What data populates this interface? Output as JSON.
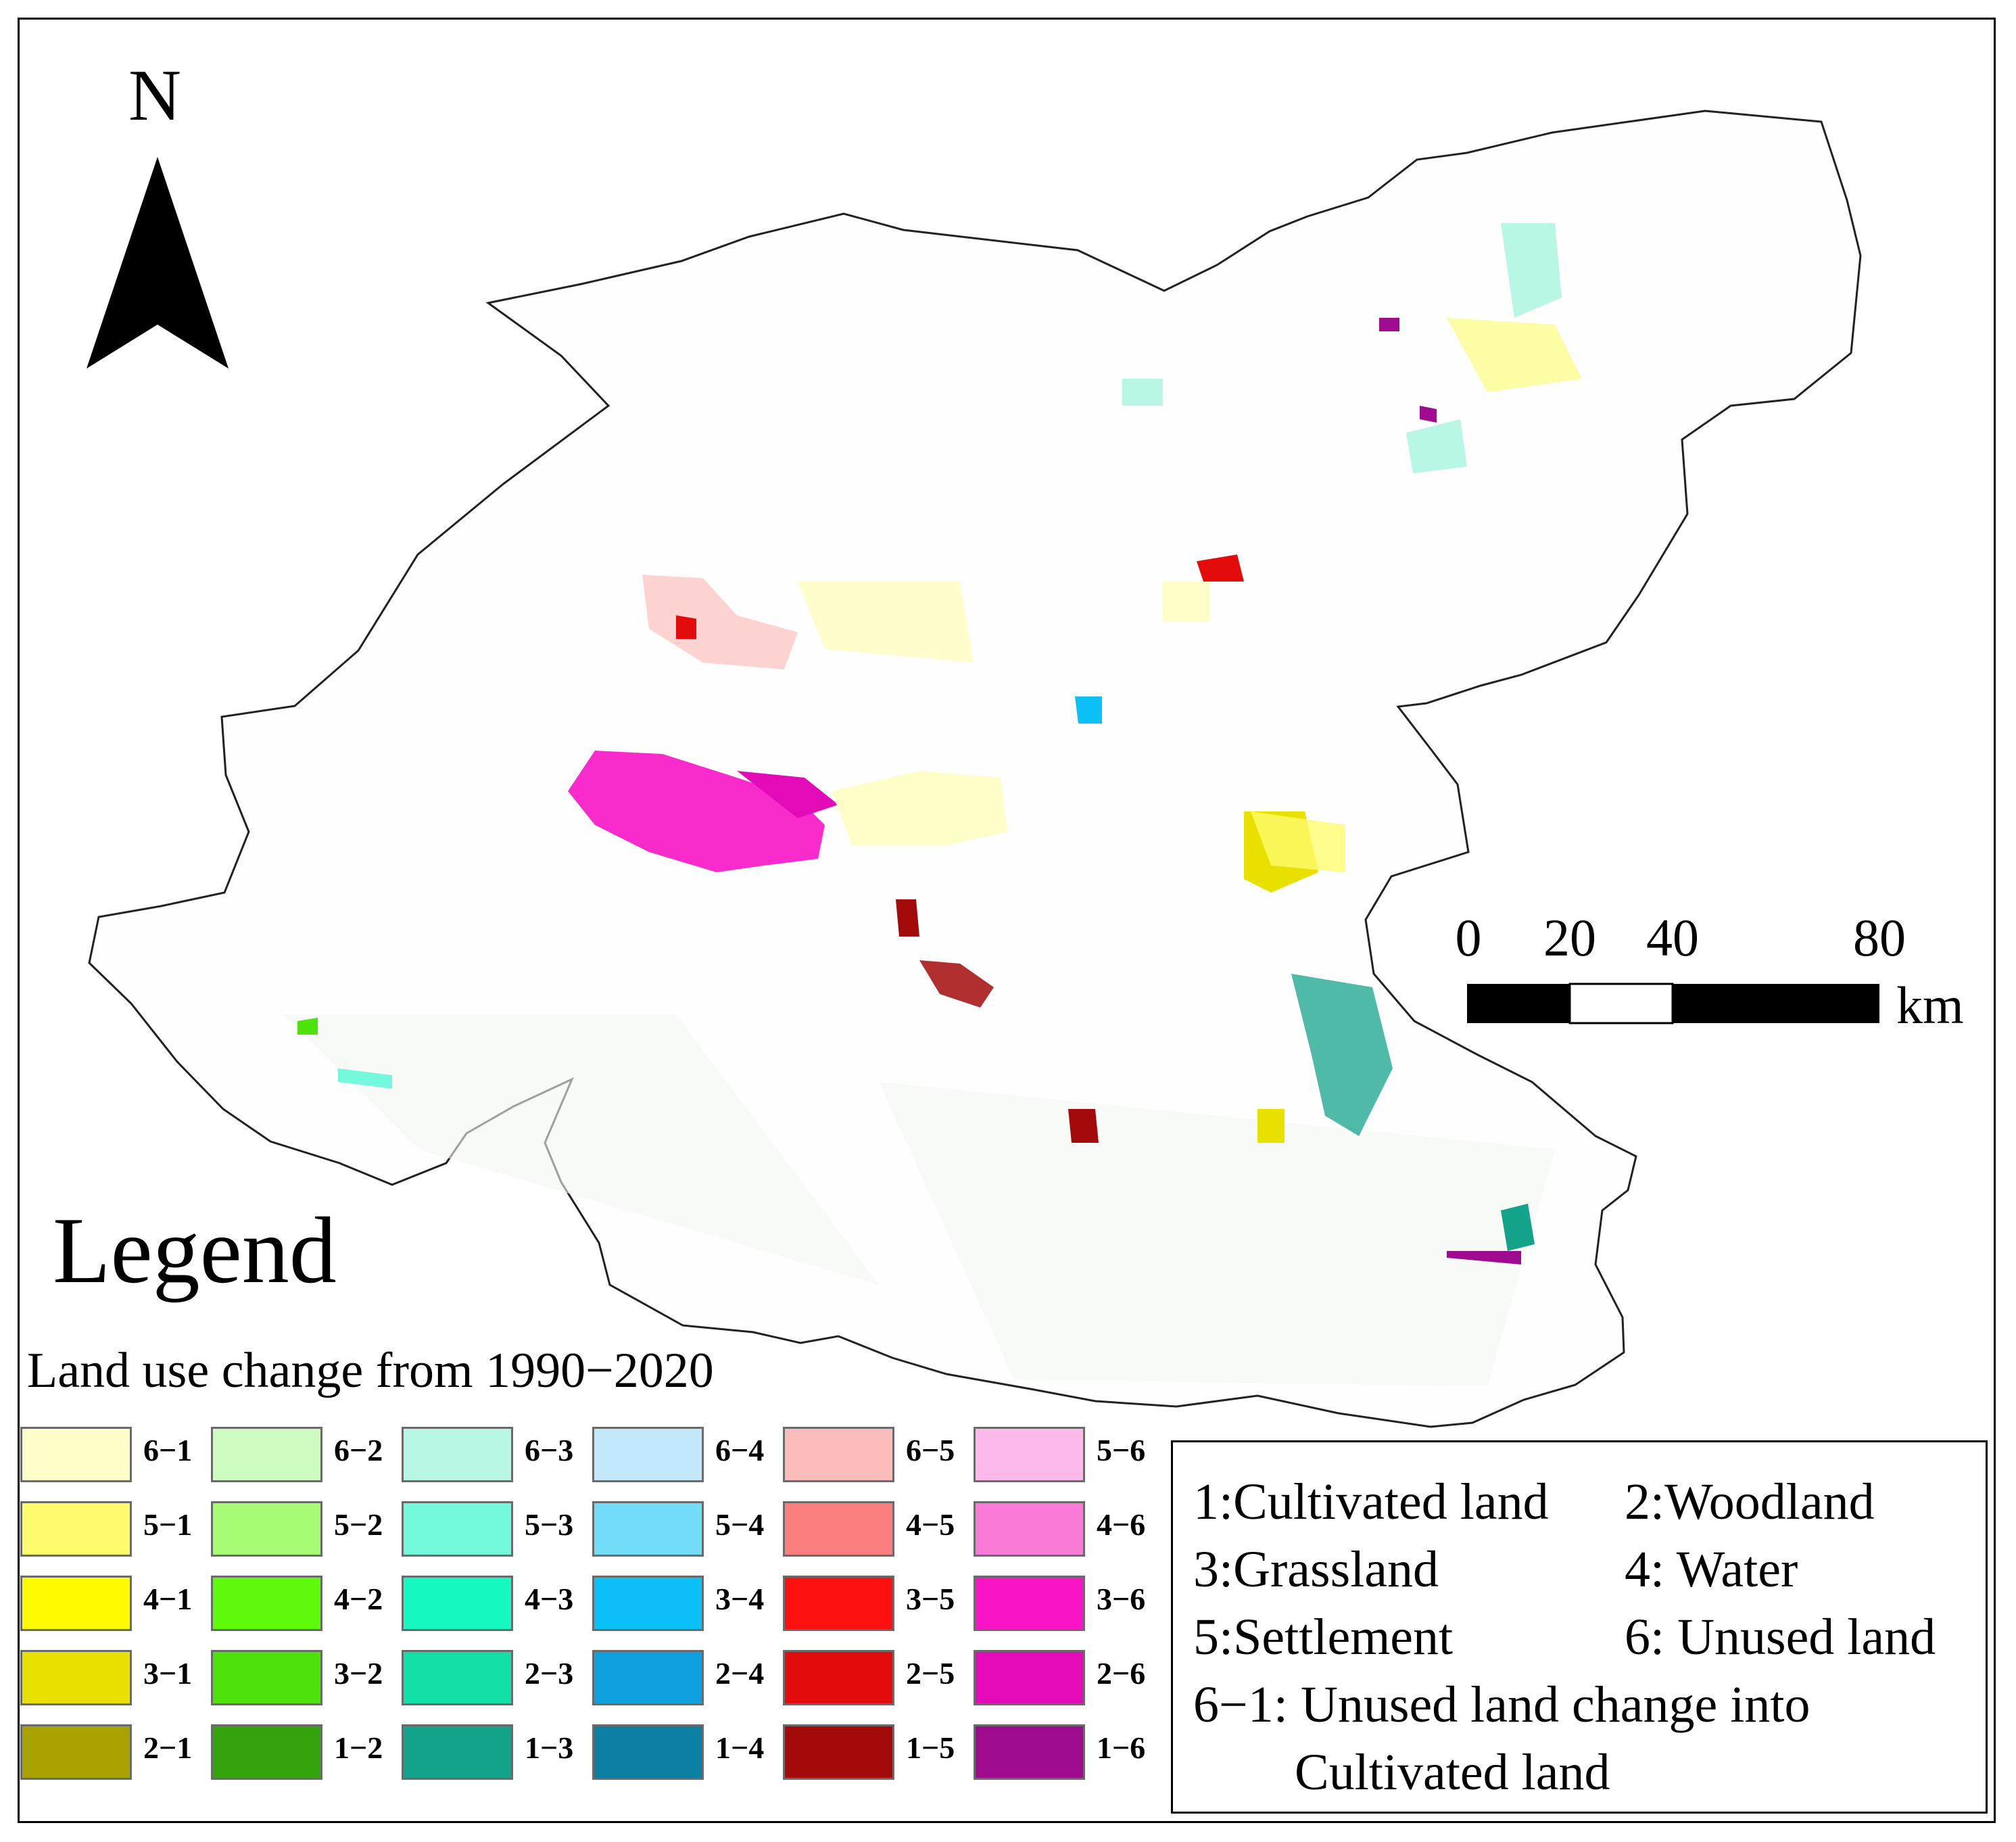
{
  "north_arrow": {
    "label": "N"
  },
  "scale_bar": {
    "ticks": [
      "0",
      "20",
      "40",
      "80"
    ],
    "unit": "km"
  },
  "legend": {
    "title": "Legend",
    "subtitle": "Land use change from 1990−2020",
    "items": [
      {
        "code": "6−1",
        "color": "#fefec8"
      },
      {
        "code": "6−2",
        "color": "#cdfbc0"
      },
      {
        "code": "6−3",
        "color": "#b8f6e6"
      },
      {
        "code": "6−4",
        "color": "#c3e8fb"
      },
      {
        "code": "6−5",
        "color": "#fdbcbc"
      },
      {
        "code": "5−6",
        "color": "#fdb9ea"
      },
      {
        "code": "5−1",
        "color": "#fefb6d"
      },
      {
        "code": "5−2",
        "color": "#a8fb74"
      },
      {
        "code": "5−3",
        "color": "#75f9dd"
      },
      {
        "code": "5−4",
        "color": "#72dcf9"
      },
      {
        "code": "4−5",
        "color": "#fc7f7f"
      },
      {
        "code": "4−6",
        "color": "#f97ad7"
      },
      {
        "code": "4−1",
        "color": "#fefa00"
      },
      {
        "code": "4−2",
        "color": "#5dfb0b"
      },
      {
        "code": "4−3",
        "color": "#15f8c0"
      },
      {
        "code": "3−4",
        "color": "#0bc0f7"
      },
      {
        "code": "3−5",
        "color": "#fc1010"
      },
      {
        "code": "3−6",
        "color": "#fa14c6"
      },
      {
        "code": "3−1",
        "color": "#e8e100"
      },
      {
        "code": "3−2",
        "color": "#4ce20a"
      },
      {
        "code": "2−3",
        "color": "#12e0a6"
      },
      {
        "code": "2−4",
        "color": "#0fa0e0"
      },
      {
        "code": "2−5",
        "color": "#e30b0b"
      },
      {
        "code": "2−6",
        "color": "#e30bb8"
      },
      {
        "code": "2−1",
        "color": "#a7a200"
      },
      {
        "code": "1−2",
        "color": "#35a30c"
      },
      {
        "code": "1−3",
        "color": "#13a38a"
      },
      {
        "code": "1−4",
        "color": "#0c80a3"
      },
      {
        "code": "1−5",
        "color": "#a30b0b"
      },
      {
        "code": "1−6",
        "color": "#9f0b8f"
      }
    ]
  },
  "codes": {
    "c1": "1:Cultivated land",
    "c2": "2:Woodland",
    "c3": "3:Grassland",
    "c4": "4: Water",
    "c5": "5:Settlement",
    "c6": "6: Unused land",
    "example_line1": "6−1: Unused land change into",
    "example_line2": "Cultivated land"
  }
}
